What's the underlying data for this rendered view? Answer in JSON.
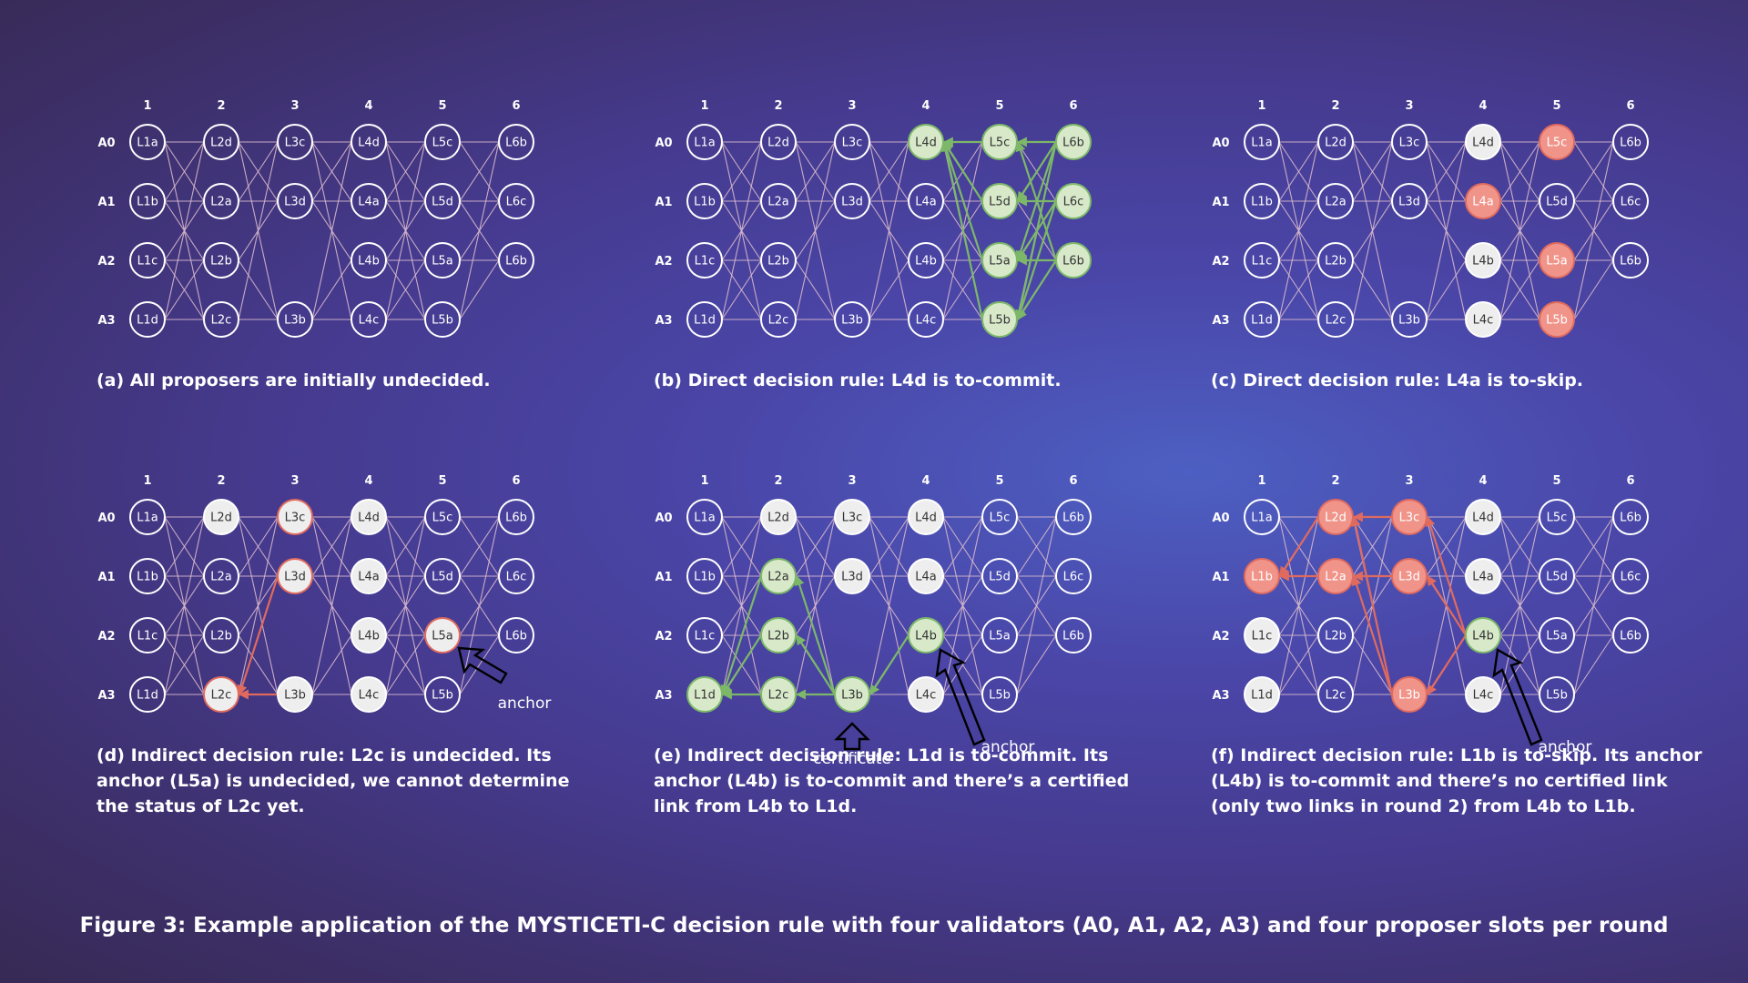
{
  "figure_caption": "Figure 3: Example application of the MYSTICETI-C decision rule with four validators (A0, A1, A2, A3) and four proposer slots per round",
  "round_labels": [
    "1",
    "2",
    "3",
    "4",
    "5",
    "6"
  ],
  "validator_labels": [
    "A0",
    "A1",
    "A2",
    "A3"
  ],
  "rounds": [
    [
      "L1a",
      "L1b",
      "L1c",
      "L1d"
    ],
    [
      "L2d",
      "L2a",
      "L2b",
      "L2c"
    ],
    [
      "L3c",
      "L3d",
      "",
      "L3b"
    ],
    [
      "L4d",
      "L4a",
      "L4b",
      "L4c"
    ],
    [
      "L5c",
      "L5d",
      "L5a",
      "L5b"
    ],
    [
      "L6b",
      "L6c",
      "L6b",
      ""
    ]
  ],
  "annotations": {
    "anchor": "anchor",
    "certificate": "certificate"
  },
  "colors": {
    "undecided": "#ffffff",
    "commit": "#7cb868",
    "skip": "#e06a5e",
    "decided_fill": "#eeeeee",
    "commit_fill": "#d8e9ca",
    "skip_fill": "#f0948a",
    "edge": "#d8b8cc"
  },
  "panels": [
    {
      "id": "a",
      "caption_lines": [
        "(a) All proposers are initially undecided."
      ],
      "node_states": {},
      "highlight_edges": [],
      "pointers": []
    },
    {
      "id": "b",
      "caption_lines": [
        "(b) Direct decision rule: L4d is to-commit."
      ],
      "node_states": {
        "3-0": "commit",
        "4-0": "commit",
        "4-1": "commit",
        "4-2": "commit",
        "4-3": "commit",
        "5-0": "commit",
        "5-1": "commit",
        "5-2": "commit"
      },
      "highlight_edges": [
        {
          "from": "4-0",
          "to": "3-0",
          "color": "commit"
        },
        {
          "from": "4-1",
          "to": "3-0",
          "color": "commit"
        },
        {
          "from": "4-2",
          "to": "3-0",
          "color": "commit"
        },
        {
          "from": "4-3",
          "to": "3-0",
          "color": "commit"
        },
        {
          "from": "5-0",
          "to": "4-0",
          "color": "commit"
        },
        {
          "from": "5-0",
          "to": "4-1",
          "color": "commit"
        },
        {
          "from": "5-0",
          "to": "4-2",
          "color": "commit"
        },
        {
          "from": "5-0",
          "to": "4-3",
          "color": "commit"
        },
        {
          "from": "5-1",
          "to": "4-1",
          "color": "commit"
        },
        {
          "from": "5-1",
          "to": "4-2",
          "color": "commit"
        },
        {
          "from": "5-1",
          "to": "4-3",
          "color": "commit"
        },
        {
          "from": "5-2",
          "to": "4-2",
          "color": "commit"
        },
        {
          "from": "5-2",
          "to": "4-3",
          "color": "commit"
        },
        {
          "from": "5-2",
          "to": "4-0",
          "color": "commit"
        }
      ],
      "pointers": []
    },
    {
      "id": "c",
      "caption_lines": [
        "(c) Direct decision rule: L4a is to-skip."
      ],
      "node_states": {
        "3-0": "decided",
        "3-1": "skip",
        "3-2": "decided",
        "3-3": "decided",
        "4-0": "skip",
        "4-2": "skip",
        "4-3": "skip"
      },
      "highlight_edges": [],
      "pointers": []
    },
    {
      "id": "d",
      "caption_lines": [
        "(d) Indirect decision rule: L2c is undecided. Its",
        "anchor (L5a) is undecided, we cannot determine",
        "the status of L2c yet."
      ],
      "node_states": {
        "1-0": "decided",
        "1-3": "decided-skip",
        "2-0": "decided-skip",
        "2-1": "decided-skip",
        "2-3": "decided",
        "3-0": "decided",
        "3-1": "decided",
        "3-2": "decided",
        "3-3": "decided",
        "4-2": "decided-skip"
      },
      "highlight_edges": [
        {
          "from": "2-1",
          "to": "1-3",
          "color": "skip"
        },
        {
          "from": "2-3",
          "to": "1-3",
          "color": "skip"
        }
      ],
      "pointers": [
        {
          "target": "4-2",
          "label": "anchor",
          "dir": "right"
        }
      ]
    },
    {
      "id": "e",
      "caption_lines": [
        "(e) Indirect decision rule: L1d is to-commit. Its",
        "anchor (L4b) is to-commit and there’s a certified",
        "link from L4b to L1d."
      ],
      "node_states": {
        "0-3": "commit",
        "1-0": "decided",
        "1-1": "commit",
        "1-2": "commit",
        "1-3": "commit",
        "2-0": "decided",
        "2-1": "decided",
        "2-3": "commit",
        "3-0": "decided",
        "3-1": "decided",
        "3-2": "commit",
        "3-3": "decided"
      },
      "highlight_edges": [
        {
          "from": "3-2",
          "to": "2-3",
          "color": "commit"
        },
        {
          "from": "2-3",
          "to": "1-1",
          "color": "commit"
        },
        {
          "from": "2-3",
          "to": "1-2",
          "color": "commit"
        },
        {
          "from": "2-3",
          "to": "1-3",
          "color": "commit"
        },
        {
          "from": "1-1",
          "to": "0-3",
          "color": "commit"
        },
        {
          "from": "1-2",
          "to": "0-3",
          "color": "commit"
        },
        {
          "from": "1-3",
          "to": "0-3",
          "color": "commit"
        }
      ],
      "pointers": [
        {
          "target": "3-2",
          "label": "anchor",
          "dir": "down"
        },
        {
          "target": "2-3",
          "label": "certificate",
          "dir": "up"
        }
      ]
    },
    {
      "id": "f",
      "caption_lines": [
        "(f) Indirect decision rule: L1b is to-skip. Its anchor",
        "(L4b) is to-commit and there’s no certified link",
        "(only two links in round 2) from L4b to L1b."
      ],
      "node_states": {
        "0-1": "skip",
        "0-2": "decided",
        "0-3": "decided",
        "1-0": "skip",
        "1-1": "skip",
        "2-0": "skip",
        "2-1": "skip",
        "2-3": "skip",
        "3-0": "decided",
        "3-1": "decided",
        "3-2": "commit",
        "3-3": "decided"
      },
      "highlight_edges": [
        {
          "from": "3-2",
          "to": "2-0",
          "color": "skip"
        },
        {
          "from": "3-2",
          "to": "2-1",
          "color": "skip"
        },
        {
          "from": "3-2",
          "to": "2-3",
          "color": "skip"
        },
        {
          "from": "2-0",
          "to": "1-0",
          "color": "skip"
        },
        {
          "from": "2-1",
          "to": "1-1",
          "color": "skip"
        },
        {
          "from": "2-3",
          "to": "1-0",
          "color": "skip"
        },
        {
          "from": "2-3",
          "to": "1-1",
          "color": "skip"
        },
        {
          "from": "1-0",
          "to": "0-1",
          "color": "skip"
        },
        {
          "from": "1-1",
          "to": "0-1",
          "color": "skip"
        }
      ],
      "pointers": [
        {
          "target": "3-2",
          "label": "anchor",
          "dir": "down"
        }
      ]
    }
  ]
}
